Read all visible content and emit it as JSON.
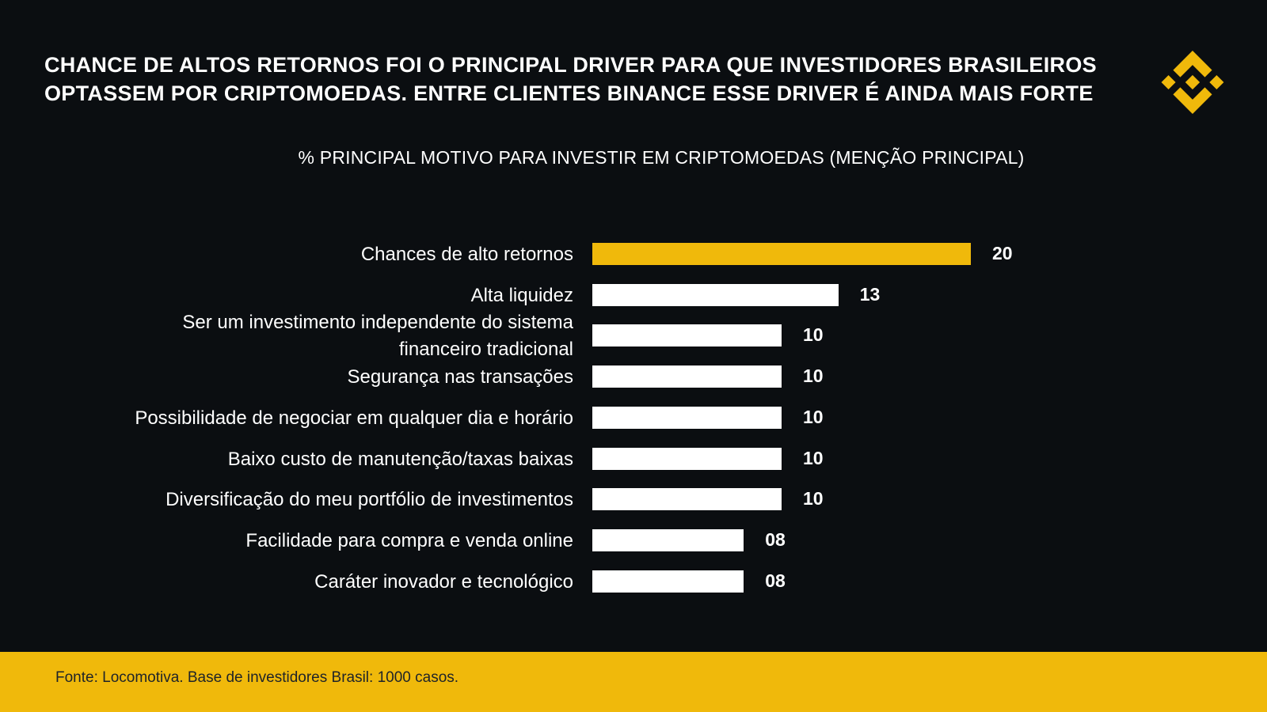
{
  "headline": {
    "line1": "CHANCE DE ALTOS RETORNOS FOI O PRINCIPAL DRIVER PARA QUE INVESTIDORES BRASILEIROS",
    "line2": "OPTASSEM POR CRIPTOMOEDAS. ENTRE CLIENTES BINANCE ESSE DRIVER É AINDA MAIS FORTE"
  },
  "logo": {
    "icon": "binance-logo-icon",
    "color": "#f0b90b"
  },
  "footer": {
    "source": "Fonte: Locomotiva. Base de investidores Brasil: 1000 casos.",
    "color": "#f0b90b"
  },
  "chart_data": {
    "type": "bar",
    "orientation": "horizontal",
    "title": "% PRINCIPAL MOTIVO PARA INVESTIR EM CRIPTOMOEDAS (MENÇÃO PRINCIPAL)",
    "categories": [
      [
        "Chances de alto retornos"
      ],
      [
        "Alta liquidez"
      ],
      [
        "Ser um investimento independente do sistema",
        "financeiro tradicional"
      ],
      [
        "Segurança nas transações"
      ],
      [
        "Possibilidade de negociar em qualquer dia e horário"
      ],
      [
        "Baixo custo de manutenção/taxas baixas"
      ],
      [
        "Diversificação do meu portfólio de investimentos"
      ],
      [
        "Facilidade para compra e venda online"
      ],
      [
        "Caráter inovador e tecnológico"
      ]
    ],
    "values": [
      20,
      13,
      10,
      10,
      10,
      10,
      10,
      8,
      8
    ],
    "value_labels": [
      "20",
      "13",
      "10",
      "10",
      "10",
      "10",
      "10",
      "08",
      "08"
    ],
    "highlight_index": 0,
    "colors": {
      "highlight": "#f0b90b",
      "default": "#ffffff",
      "background": "#0b0e11"
    },
    "xlim": [
      0,
      20
    ],
    "grid": false,
    "legend": "none"
  }
}
